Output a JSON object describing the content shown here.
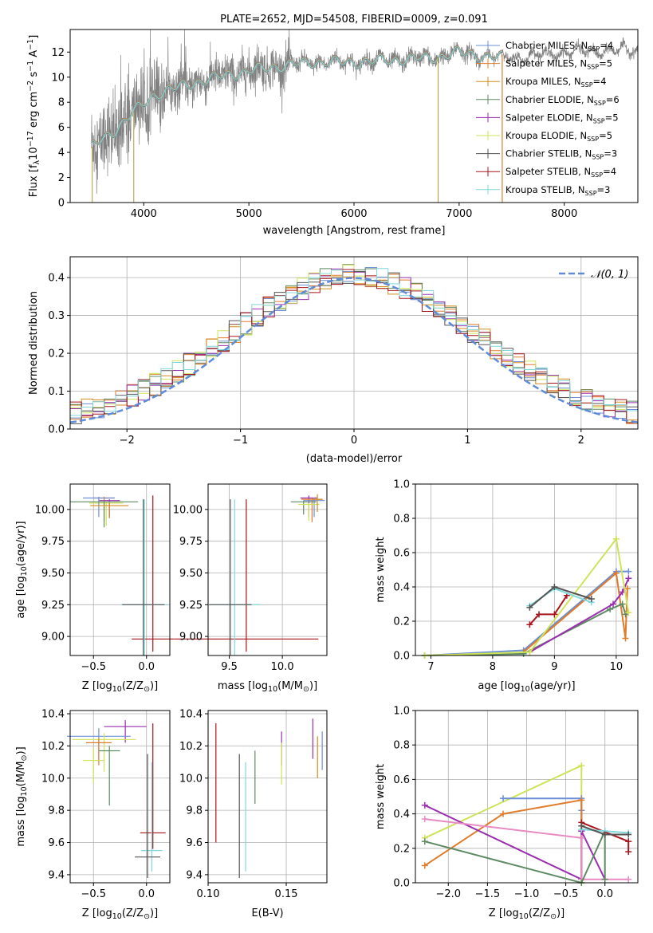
{
  "figure_title": "PLATE=2652, MJD=54508, FIBERID=0009, z=0.091",
  "models": [
    {
      "name": "Chabrier MILES, N",
      "sub": "SSP",
      "n": "=4",
      "color": "#6b8fd6"
    },
    {
      "name": "Salpeter MILES, N",
      "sub": "SSP",
      "n": "=5",
      "color": "#e07b2a"
    },
    {
      "name": "Kroupa MILES, N",
      "sub": "SSP",
      "n": "=4",
      "color": "#d48a1e"
    },
    {
      "name": "Chabrier ELODIE, N",
      "sub": "SSP",
      "n": "=6",
      "color": "#5e8a64"
    },
    {
      "name": "Salpeter ELODIE, N",
      "sub": "SSP",
      "n": "=5",
      "color": "#9a2fb0"
    },
    {
      "name": "Kroupa ELODIE, N",
      "sub": "SSP",
      "n": "=5",
      "color": "#cfe35a"
    },
    {
      "name": "Chabrier STELIB, N",
      "sub": "SSP",
      "n": "=3",
      "color": "#555555"
    },
    {
      "name": "Salpeter STELIB, N",
      "sub": "SSP",
      "n": "=4",
      "color": "#a8141e"
    },
    {
      "name": "Kroupa STELIB, N",
      "sub": "SSP",
      "n": "=3",
      "color": "#80d8dc"
    }
  ],
  "chart_data": [
    {
      "id": "spectrum",
      "type": "line",
      "title": "PLATE=2652, MJD=54508, FIBERID=0009, z=0.091",
      "xlabel": "wavelength [Angstrom, rest frame]",
      "ylabel_pre": "Flux [f",
      "ylabel_sub": "λ",
      "ylabel_mid": "10",
      "ylabel_exp1": "−17",
      "ylabel_mid2": " erg cm",
      "ylabel_exp2": "−2",
      "ylabel_mid3": " s",
      "ylabel_exp3": "−1",
      "ylabel_mid4": " A",
      "ylabel_exp4": "−1",
      "ylabel_end": "]",
      "xlim": [
        3300,
        8700
      ],
      "ylim": [
        0,
        13.8
      ],
      "xticks": [
        4000,
        5000,
        6000,
        7000,
        8000
      ],
      "yticks": [
        0,
        2,
        4,
        6,
        8,
        10,
        12
      ],
      "data_color": "#808080",
      "model_color": "#80d8dc",
      "continuum_knots": [
        [
          3500,
          4.4
        ],
        [
          3700,
          5.6
        ],
        [
          3900,
          7.2
        ],
        [
          4100,
          8.6
        ],
        [
          4400,
          9.4
        ],
        [
          4800,
          10.2
        ],
        [
          5200,
          10.8
        ],
        [
          5600,
          11.2
        ],
        [
          6000,
          11.2
        ],
        [
          6400,
          11.4
        ],
        [
          6800,
          11.6
        ],
        [
          7000,
          12.0
        ],
        [
          7300,
          11.6
        ],
        [
          7600,
          11.6
        ],
        [
          8000,
          12.0
        ],
        [
          8400,
          12.1
        ],
        [
          8700,
          12.2
        ]
      ],
      "model_lower_limit": 3500,
      "model_upper_limit": 7410,
      "orange_vertical": 7410,
      "drop_lines": [
        3510,
        3905,
        6800
      ]
    },
    {
      "id": "residuals",
      "type": "histogram",
      "xlabel": "(data-model)/error",
      "ylabel": "Normed distribution",
      "xlim": [
        -2.5,
        2.5
      ],
      "ylim": [
        0,
        0.455
      ],
      "xticks": [
        -2,
        -1,
        0,
        1,
        2
      ],
      "yticks": [
        0.0,
        0.1,
        0.2,
        0.3,
        0.4
      ],
      "bin_width": 0.1,
      "legend_label": "𝒩(0, 1)",
      "gaussian": {
        "mean": 0,
        "sigma": 1,
        "color": "#5f8bd8"
      }
    },
    {
      "id": "age-vs-Z",
      "type": "errorbar",
      "xlabel_pre": "Z [log",
      "xlabel_sub": "10",
      "xlabel_post": "(Z/Z",
      "xlabel_sun": "⊙",
      "xlabel_end": ")]",
      "ylabel_pre": "age  [log",
      "ylabel_sub": "10",
      "ylabel_post": "(age/yr)]",
      "xlim": [
        -0.72,
        0.22
      ],
      "ylim": [
        8.85,
        10.2
      ],
      "xticks": [
        -0.5,
        0.0
      ],
      "yticks": [
        9.0,
        9.25,
        9.5,
        9.75,
        10.0
      ],
      "points": [
        {
          "x": -0.4,
          "y": 10.09,
          "xerr": 0.1,
          "yerr_low": 0.18,
          "yerr_high": 0.01,
          "color": 1
        },
        {
          "x": -0.35,
          "y": 10.07,
          "xerr": 0.1,
          "yerr_low": 0.13,
          "yerr_high": 0.01,
          "color": 4
        },
        {
          "x": -0.38,
          "y": 10.05,
          "xerr": 0.16,
          "yerr_low": 0.18,
          "yerr_high": 0.01,
          "color": 5
        },
        {
          "x": -0.45,
          "y": 10.09,
          "xerr": 0.15,
          "yerr_low": 0.15,
          "yerr_high": 0.01,
          "color": 0
        },
        {
          "x": -0.4,
          "y": 10.06,
          "xerr": 0.32,
          "yerr_low": 0.2,
          "yerr_high": 0.01,
          "color": 3
        },
        {
          "x": -0.35,
          "y": 10.03,
          "xerr": 0.18,
          "yerr_low": 0.1,
          "yerr_high": 0.02,
          "color": 2
        },
        {
          "x": 0.06,
          "y": 8.98,
          "xerr": 0.2,
          "yerr_low": 0.1,
          "yerr_high": 1.13,
          "color": 7
        },
        {
          "x": -0.02,
          "y": 9.25,
          "xerr": 0.22,
          "yerr_low": 0.4,
          "yerr_high": 0.83,
          "color": 8
        },
        {
          "x": -0.03,
          "y": 9.25,
          "xerr": 0.2,
          "yerr_low": 0.4,
          "yerr_high": 0.83,
          "color": 6
        }
      ]
    },
    {
      "id": "age-vs-mass",
      "type": "errorbar",
      "xlabel_pre": "mass [log",
      "xlabel_sub": "10",
      "xlabel_post": "(M/M",
      "xlabel_sun": "⊙",
      "xlabel_end": ")]",
      "ylabel": "",
      "xlim": [
        9.3,
        10.42
      ],
      "ylim": [
        8.85,
        10.2
      ],
      "xticks": [
        9.5,
        10.0
      ],
      "yticks": [
        9.0,
        9.25,
        9.5,
        9.75,
        10.0
      ],
      "points": [
        {
          "x": 10.25,
          "y": 10.09,
          "xerr": 0.08,
          "yerr_low": 0.15,
          "yerr_high": 0.02,
          "color": 4
        },
        {
          "x": 10.3,
          "y": 10.07,
          "xerr": 0.1,
          "yerr_low": 0.13,
          "yerr_high": 0.02,
          "color": 0
        },
        {
          "x": 10.28,
          "y": 10.08,
          "xerr": 0.1,
          "yerr_low": 0.18,
          "yerr_high": 0.01,
          "color": 1
        },
        {
          "x": 10.2,
          "y": 10.06,
          "xerr": 0.12,
          "yerr_low": 0.1,
          "yerr_high": 0.01,
          "color": 3
        },
        {
          "x": 10.25,
          "y": 10.04,
          "xerr": 0.1,
          "yerr_low": 0.13,
          "yerr_high": 0.01,
          "color": 5
        },
        {
          "x": 10.33,
          "y": 10.08,
          "xerr": 0.05,
          "yerr_low": 0.1,
          "yerr_high": 0.04,
          "color": 2
        },
        {
          "x": 9.66,
          "y": 8.98,
          "xerr": 0.68,
          "yerr_low": 0.1,
          "yerr_high": 1.1,
          "color": 7
        },
        {
          "x": 9.55,
          "y": 9.25,
          "xerr": 0.24,
          "yerr_low": 0.4,
          "yerr_high": 0.83,
          "color": 8
        },
        {
          "x": 9.51,
          "y": 9.25,
          "xerr": 0.2,
          "yerr_low": 0.4,
          "yerr_high": 0.83,
          "color": 6
        }
      ]
    },
    {
      "id": "weight-vs-age",
      "type": "line",
      "xlabel_pre": "age  [log",
      "xlabel_sub": "10",
      "xlabel_post": "(age/yr)]",
      "ylabel": "mass weight",
      "xlim": [
        6.75,
        10.35
      ],
      "ylim": [
        0,
        1.0
      ],
      "xticks": [
        7,
        8,
        9,
        10
      ],
      "yticks": [
        0.0,
        0.2,
        0.4,
        0.6,
        0.8,
        1.0
      ],
      "series": [
        {
          "color": 0,
          "x": [
            6.9,
            8.5,
            10.0,
            10.2
          ],
          "y": [
            0.0,
            0.03,
            0.49,
            0.49
          ]
        },
        {
          "color": 1,
          "x": [
            8.5,
            10.0,
            10.15,
            10.18
          ],
          "y": [
            0.02,
            0.48,
            0.1,
            0.39
          ]
        },
        {
          "color": 3,
          "x": [
            6.9,
            8.5,
            9.9,
            10.1,
            10.15
          ],
          "y": [
            0.0,
            0.01,
            0.27,
            0.3,
            0.24
          ]
        },
        {
          "color": 4,
          "x": [
            8.6,
            9.95,
            10.1,
            10.2
          ],
          "y": [
            0.02,
            0.3,
            0.37,
            0.45
          ]
        },
        {
          "color": 5,
          "x": [
            6.9,
            8.6,
            10.0,
            10.2
          ],
          "y": [
            0.0,
            0.02,
            0.68,
            0.25
          ]
        },
        {
          "color": 7,
          "x": [
            8.6,
            8.75,
            9.0,
            9.2
          ],
          "y": [
            0.18,
            0.24,
            0.24,
            0.35
          ]
        },
        {
          "color": 8,
          "x": [
            8.6,
            9.0,
            9.6
          ],
          "y": [
            0.29,
            0.39,
            0.31
          ]
        },
        {
          "color": 6,
          "x": [
            8.6,
            9.0,
            9.6
          ],
          "y": [
            0.28,
            0.4,
            0.33
          ]
        }
      ]
    },
    {
      "id": "mass-vs-Z",
      "type": "errorbar",
      "xlabel_pre": "Z [log",
      "xlabel_sub": "10",
      "xlabel_post": "(Z/Z",
      "xlabel_sun": "⊙",
      "xlabel_end": ")]",
      "ylabel_pre": "mass [log",
      "ylabel_sub": "10",
      "ylabel_post": "(M/M",
      "ylabel_sun": "⊙",
      "ylabel_end": ")]",
      "xlim": [
        -0.72,
        0.22
      ],
      "ylim": [
        9.35,
        10.42
      ],
      "xticks": [
        -0.5,
        0.0
      ],
      "yticks": [
        9.4,
        9.6,
        9.8,
        10.0,
        10.2,
        10.4
      ],
      "points": [
        {
          "x": -0.2,
          "y": 10.32,
          "xerr": 0.2,
          "yerr_low": 0.1,
          "yerr_high": 0.04,
          "color": 4
        },
        {
          "x": -0.45,
          "y": 10.26,
          "xerr": 0.3,
          "yerr_low": 0.16,
          "yerr_high": 0.05,
          "color": 0
        },
        {
          "x": -0.4,
          "y": 10.24,
          "xerr": 0.3,
          "yerr_low": 0.2,
          "yerr_high": 0.04,
          "color": 5
        },
        {
          "x": -0.45,
          "y": 10.22,
          "xerr": 0.12,
          "yerr_low": 0.14,
          "yerr_high": 0.03,
          "color": 1
        },
        {
          "x": -0.35,
          "y": 10.17,
          "xerr": 0.1,
          "yerr_low": 0.34,
          "yerr_high": 0.03,
          "color": 3
        },
        {
          "x": -0.5,
          "y": 10.11,
          "xerr": 0.1,
          "yerr_low": 0.14,
          "yerr_high": 0.08,
          "color": 5
        },
        {
          "x": 0.06,
          "y": 9.66,
          "xerr": 0.12,
          "yerr_low": 0.1,
          "yerr_high": 0.68,
          "color": 7
        },
        {
          "x": 0.05,
          "y": 9.55,
          "xerr": 0.1,
          "yerr_low": 0.13,
          "yerr_high": 0.55,
          "color": 8
        },
        {
          "x": 0.01,
          "y": 9.51,
          "xerr": 0.12,
          "yerr_low": 0.13,
          "yerr_high": 0.64,
          "color": 6
        }
      ]
    },
    {
      "id": "mass-vs-EBV",
      "type": "errorbar",
      "xlabel": "E(B-V)",
      "ylabel": "",
      "xlim": [
        0.1,
        0.176
      ],
      "ylim": [
        9.35,
        10.42
      ],
      "xticks": [
        0.1,
        0.15
      ],
      "yticks": [
        9.4,
        9.6,
        9.8,
        10.0,
        10.2,
        10.4
      ],
      "points": [
        {
          "x": 0.105,
          "y": 10.0,
          "xerr": 0,
          "yerr_low": 0.4,
          "yerr_high": 0.34,
          "color": 7
        },
        {
          "x": 0.12,
          "y": 9.8,
          "xerr": 0,
          "yerr_low": 0.42,
          "yerr_high": 0.35,
          "color": 6
        },
        {
          "x": 0.124,
          "y": 9.75,
          "xerr": 0,
          "yerr_low": 0.33,
          "yerr_high": 0.35,
          "color": 8
        },
        {
          "x": 0.13,
          "y": 10.0,
          "xerr": 0,
          "yerr_low": 0.16,
          "yerr_high": 0.17,
          "color": 3
        },
        {
          "x": 0.147,
          "y": 10.2,
          "xerr": 0,
          "yerr_low": 0.12,
          "yerr_high": 0.09,
          "color": 4
        },
        {
          "x": 0.147,
          "y": 10.1,
          "xerr": 0,
          "yerr_low": 0.14,
          "yerr_high": 0.12,
          "color": 5
        },
        {
          "x": 0.167,
          "y": 10.25,
          "xerr": 0,
          "yerr_low": 0.13,
          "yerr_high": 0.12,
          "color": 4
        },
        {
          "x": 0.17,
          "y": 10.1,
          "xerr": 0,
          "yerr_low": 0.1,
          "yerr_high": 0.16,
          "color": 2
        },
        {
          "x": 0.173,
          "y": 10.15,
          "xerr": 0,
          "yerr_low": 0.1,
          "yerr_high": 0.14,
          "color": 0
        }
      ]
    },
    {
      "id": "weight-vs-Z",
      "type": "line",
      "xlabel_pre": "Z [log",
      "xlabel_sub": "10",
      "xlabel_post": "(Z/Z",
      "xlabel_sun": "⊙",
      "xlabel_end": ")]",
      "ylabel": "mass weight",
      "xlim": [
        -2.42,
        0.42
      ],
      "ylim": [
        0,
        1.0
      ],
      "xticks": [
        -2.0,
        -1.5,
        -1.0,
        -0.5,
        0.0
      ],
      "yticks": [
        0.0,
        0.2,
        0.4,
        0.6,
        0.8,
        1.0
      ],
      "series": [
        {
          "color": 5,
          "x": [
            -2.3,
            -0.3,
            -0.3,
            -0.3
          ],
          "y": [
            0.26,
            0.68,
            0.3,
            0.0
          ]
        },
        {
          "color": 0,
          "x": [
            -1.3,
            -0.3,
            -0.3,
            -0.3
          ],
          "y": [
            0.49,
            0.49,
            0.42,
            0.3
          ]
        },
        {
          "color": 1,
          "x": [
            -2.3,
            -1.3,
            -0.3,
            -0.3
          ],
          "y": [
            0.1,
            0.4,
            0.48,
            0.02
          ]
        },
        {
          "color": 4,
          "x": [
            -2.3,
            -0.3,
            -0.3,
            0.0
          ],
          "y": [
            0.45,
            0.02,
            0.3,
            0.02
          ]
        },
        {
          "color": 9,
          "x": [
            -2.3,
            -0.3,
            -0.3,
            0.3
          ],
          "y": [
            0.37,
            0.26,
            0.02,
            0.02
          ]
        },
        {
          "color": 3,
          "x": [
            -2.3,
            -0.3,
            0.0,
            0.0
          ],
          "y": [
            0.24,
            0.0,
            0.3,
            0.02
          ]
        },
        {
          "color": 7,
          "x": [
            -0.3,
            0.3,
            0.3
          ],
          "y": [
            0.35,
            0.24,
            0.18
          ]
        },
        {
          "color": 8,
          "x": [
            -0.3,
            0.0,
            0.3
          ],
          "y": [
            0.31,
            0.3,
            0.29
          ]
        },
        {
          "color": 6,
          "x": [
            -0.3,
            0.0,
            0.3
          ],
          "y": [
            0.33,
            0.28,
            0.28
          ]
        }
      ]
    }
  ]
}
